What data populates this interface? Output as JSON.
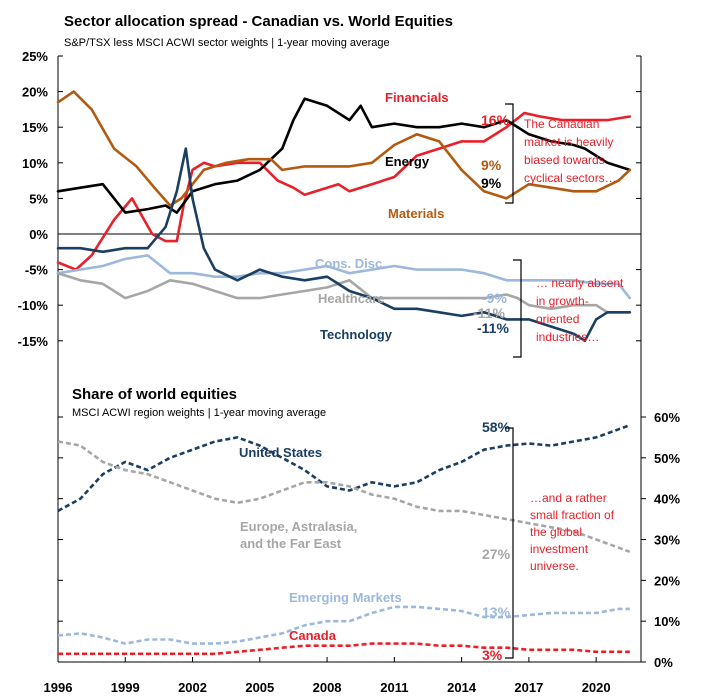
{
  "chart_data": [
    {
      "type": "line",
      "title": "Sector allocation spread - Canadian vs. World Equities",
      "subtitle": "S&P/TSX less MSCI ACWI sector weights | 1-year moving average",
      "xlim": [
        1996,
        2022
      ],
      "ylim": [
        -20,
        25
      ],
      "y_ticks": [
        25,
        20,
        15,
        10,
        5,
        0,
        -5,
        -10,
        -15
      ],
      "y_tick_labels": [
        "25%",
        "20%",
        "15%",
        "10%",
        "5%",
        "0%",
        "-5%",
        "-10%",
        "-15%"
      ],
      "grid": false,
      "series": [
        {
          "name": "Financials",
          "color": "#e8202a",
          "end_label": "16%",
          "x": [
            1996,
            1996.8,
            1997.5,
            1998.5,
            1999.3,
            2000.2,
            2000.8,
            2001.3,
            2001.6,
            2002,
            2002.5,
            2003,
            2004,
            2005,
            2005.8,
            2006.5,
            2007,
            2007.5,
            2008.5,
            2009,
            2010,
            2011,
            2012,
            2013,
            2014,
            2015,
            2016,
            2016.8,
            2017.5,
            2018.5,
            2019.5,
            2020.5,
            2021.5
          ],
          "y": [
            -4,
            -5,
            -3,
            2,
            5,
            0,
            -1,
            -1,
            4,
            9,
            10,
            9.5,
            10,
            10,
            7.5,
            6.5,
            5.5,
            6,
            7,
            6,
            7,
            8,
            11,
            12,
            13,
            13,
            15,
            17,
            16.5,
            16,
            16,
            16,
            16.5
          ]
        },
        {
          "name": "Energy",
          "color": "#000000",
          "end_label": "9%",
          "x": [
            1996,
            1997,
            1998,
            1999,
            2000,
            2000.8,
            2001.3,
            2002,
            2003,
            2004,
            2005,
            2006,
            2006.5,
            2007,
            2008,
            2009,
            2009.5,
            2010,
            2011,
            2012,
            2013,
            2014,
            2015,
            2016,
            2017,
            2018,
            2019,
            2019.5,
            2020.5,
            2021.5
          ],
          "y": [
            6,
            6.5,
            7,
            3,
            3.5,
            4,
            3,
            6,
            7,
            7.5,
            9,
            12,
            16,
            19,
            18,
            16,
            18,
            15,
            15.5,
            15,
            15,
            15.5,
            15,
            16,
            14,
            13,
            12.5,
            12,
            10,
            9
          ]
        },
        {
          "name": "Materials",
          "color": "#b35a10",
          "end_label": "9%",
          "x": [
            1996,
            1996.7,
            1997.5,
            1998.5,
            1999.5,
            2000.3,
            2001,
            2001.5,
            2002.5,
            2003.5,
            2004.5,
            2005.5,
            2006,
            2007,
            2008,
            2009,
            2010,
            2011,
            2012,
            2013,
            2014,
            2015,
            2016,
            2017,
            2018,
            2019,
            2020,
            2021,
            2021.5
          ],
          "y": [
            18.5,
            20,
            17.5,
            12,
            9.5,
            6.5,
            4,
            5,
            9,
            10,
            10.5,
            10.5,
            9,
            9.5,
            9.5,
            9.5,
            10,
            12.5,
            14,
            13,
            9,
            6,
            5,
            7,
            6.5,
            6,
            6,
            7.5,
            9
          ]
        },
        {
          "name": "Cons. Disc.",
          "color": "#9db8dd",
          "end_label": "-9%",
          "x": [
            1996,
            1997,
            1998,
            1999,
            2000,
            2001,
            2002,
            2003,
            2004,
            2005,
            2006,
            2007,
            2008,
            2009,
            2010,
            2011,
            2012,
            2013,
            2014,
            2015,
            2016,
            2017,
            2018,
            2019,
            2020,
            2021,
            2021.5
          ],
          "y": [
            -5.5,
            -5,
            -4.5,
            -3.5,
            -3,
            -5.5,
            -5.5,
            -6,
            -6,
            -5.5,
            -5.5,
            -5,
            -4.5,
            -5.5,
            -5,
            -4.5,
            -5,
            -5,
            -5,
            -5.5,
            -6.5,
            -6.5,
            -6.5,
            -6.5,
            -7,
            -7,
            -9
          ]
        },
        {
          "name": "Healthcare",
          "color": "#a6a6a6",
          "end_label": "-11%",
          "x": [
            1996,
            1997,
            1998,
            1999,
            2000,
            2001,
            2002,
            2003,
            2004,
            2005,
            2006,
            2007,
            2008,
            2009,
            2010,
            2011,
            2012,
            2013,
            2014,
            2015,
            2016,
            2016.5,
            2017,
            2018,
            2019,
            2020,
            2020.5,
            2021.5
          ],
          "y": [
            -5.5,
            -6.5,
            -7,
            -9,
            -8,
            -6.5,
            -7,
            -8,
            -9,
            -9,
            -8.5,
            -8,
            -7.5,
            -6.5,
            -9,
            -9,
            -9,
            -9,
            -9,
            -9,
            -8.5,
            -9,
            -10,
            -10.5,
            -10,
            -10,
            -11,
            -11
          ]
        },
        {
          "name": "Technology",
          "color": "#1a3f63",
          "end_label": "-11%",
          "x": [
            1996,
            1997,
            1998,
            1999,
            2000,
            2000.8,
            2001.3,
            2001.7,
            2002,
            2002.5,
            2003,
            2004,
            2005,
            2006,
            2007,
            2008,
            2009,
            2010,
            2011,
            2012,
            2013,
            2014,
            2015,
            2016,
            2017,
            2018,
            2019,
            2019.5,
            2020,
            2020.5,
            2021.5
          ],
          "y": [
            -2,
            -2,
            -2.5,
            -2,
            -2,
            1,
            6,
            12,
            5,
            -2,
            -5,
            -6.5,
            -5,
            -6,
            -6.5,
            -6,
            -8,
            -9,
            -10.5,
            -10.5,
            -11,
            -11.5,
            -11,
            -12,
            -12,
            -13,
            -14,
            -15,
            -12,
            -11,
            -11
          ]
        }
      ],
      "annotations": [
        "The Canadian market is heavily biased towards cyclical sectors…",
        "… nearly absent in growth-oriented industries…"
      ]
    },
    {
      "type": "line",
      "title": "Share of world equities",
      "subtitle": "MSCI ACWI region weights | 1-year moving average",
      "xlim": [
        1996,
        2022
      ],
      "ylim": [
        0,
        60
      ],
      "y_ticks": [
        60,
        50,
        40,
        30,
        20,
        10,
        0
      ],
      "y_tick_labels": [
        "60%",
        "50%",
        "40%",
        "30%",
        "20%",
        "10%",
        "0%"
      ],
      "x_ticks": [
        1996,
        1999,
        2002,
        2005,
        2008,
        2011,
        2014,
        2017,
        2020
      ],
      "x_tick_labels": [
        "1996",
        "1999",
        "2002",
        "2005",
        "2008",
        "2011",
        "2014",
        "2017",
        "2020"
      ],
      "line_style": "dashed",
      "grid": false,
      "series": [
        {
          "name": "United States",
          "color": "#1a3f63",
          "end_label": "58%",
          "x": [
            1996,
            1997,
            1998,
            1999,
            2000,
            2001,
            2002,
            2003,
            2004,
            2005,
            2006,
            2007,
            2008,
            2009,
            2010,
            2011,
            2012,
            2013,
            2014,
            2015,
            2016,
            2017,
            2018,
            2019,
            2020,
            2021,
            2021.5
          ],
          "y": [
            37,
            40,
            46,
            49,
            47,
            50,
            52,
            54,
            55,
            53,
            50,
            47,
            43,
            42,
            44,
            43,
            44,
            47,
            49,
            52,
            53,
            53.5,
            53,
            54,
            55,
            57,
            58
          ]
        },
        {
          "name": "Europe, Astralasia, and the Far East",
          "color": "#a6a6a6",
          "end_label": "27%",
          "x": [
            1996,
            1997,
            1998,
            1999,
            2000,
            2001,
            2002,
            2003,
            2004,
            2005,
            2006,
            2007,
            2008,
            2009,
            2010,
            2011,
            2012,
            2013,
            2014,
            2015,
            2016,
            2017,
            2018,
            2019,
            2020,
            2021,
            2021.5
          ],
          "y": [
            54,
            53,
            49,
            47,
            46,
            44,
            42,
            40,
            39,
            40,
            42,
            44,
            44,
            43,
            41,
            40,
            38,
            37,
            37,
            36,
            35,
            34,
            33,
            32,
            30,
            28,
            27
          ]
        },
        {
          "name": "Emerging Markets",
          "color": "#9db8dd",
          "end_label": "13%",
          "x": [
            1996,
            1997,
            1998,
            1999,
            2000,
            2001,
            2002,
            2003,
            2004,
            2005,
            2006,
            2007,
            2008,
            2009,
            2010,
            2011,
            2012,
            2013,
            2014,
            2015,
            2016,
            2017,
            2018,
            2019,
            2020,
            2021,
            2021.5
          ],
          "y": [
            6.5,
            7,
            6,
            4.5,
            5.5,
            5.5,
            4.5,
            4.5,
            5,
            6,
            7,
            9,
            10,
            10,
            12,
            13.5,
            13.5,
            13,
            12.5,
            11,
            11,
            11.5,
            12,
            12,
            12,
            13,
            13
          ]
        },
        {
          "name": "Canada",
          "color": "#e8202a",
          "end_label": "3%",
          "x": [
            1996,
            1997,
            1998,
            1999,
            2000,
            2001,
            2002,
            2003,
            2004,
            2005,
            2006,
            2007,
            2008,
            2009,
            2010,
            2011,
            2012,
            2013,
            2014,
            2015,
            2016,
            2017,
            2018,
            2019,
            2020,
            2021,
            2021.5
          ],
          "y": [
            2,
            2,
            2,
            2,
            2,
            2,
            2,
            2,
            2.5,
            3,
            3.5,
            4,
            4,
            4,
            4.5,
            4.5,
            4.5,
            4,
            4,
            3.5,
            3.5,
            3,
            3,
            3,
            2.5,
            2.5,
            2.5
          ]
        }
      ],
      "annotations": [
        "…and a rather small fraction of the global investment universe."
      ]
    }
  ]
}
